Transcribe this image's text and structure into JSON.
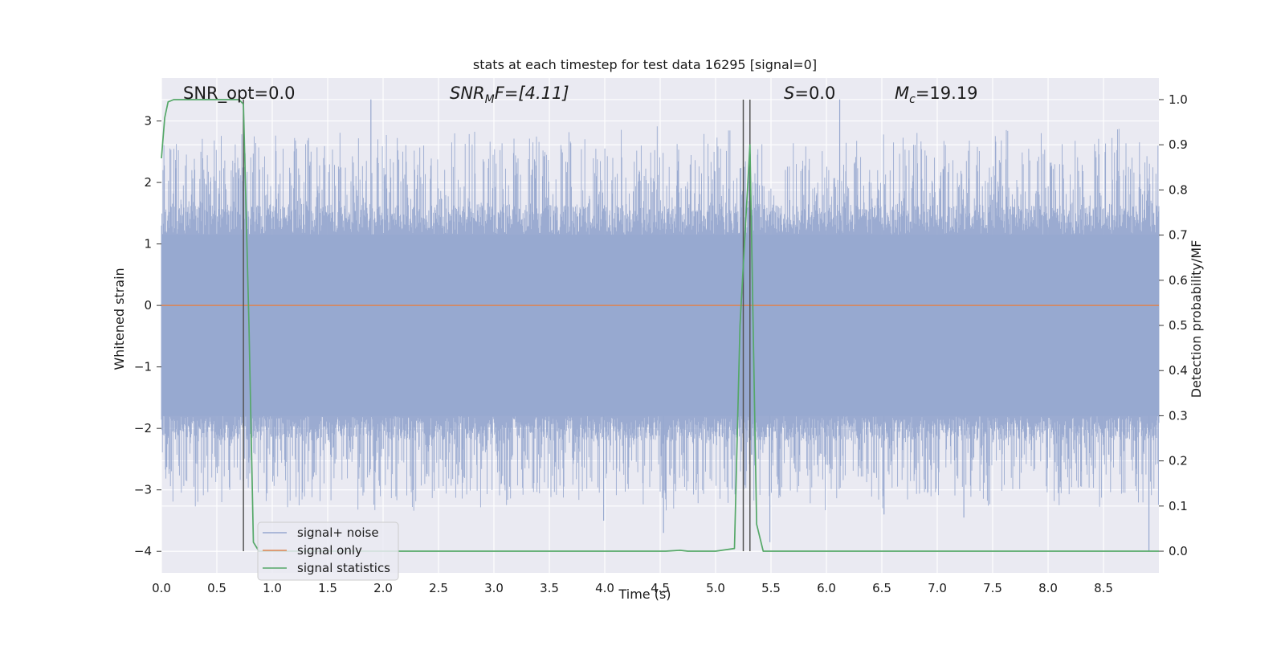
{
  "figure": {
    "title": "stats at each timestep for test data 16295 [signal=0]",
    "background": "#ffffff",
    "plot_background": "#eaeaf2",
    "grid_color": "#ffffff"
  },
  "annotations": {
    "snr_opt": "SNR_opt=0.0",
    "snr_mf_base": "SNR",
    "snr_mf_sub": "M",
    "snr_mf_rest": "F=[4.11]",
    "s_italic": "S",
    "s_rest": "=0.0",
    "mc_base": "M",
    "mc_sub": "c",
    "mc_rest": "=19.19"
  },
  "legend": {
    "placement": "lower-left",
    "items": [
      {
        "label": "signal+ noise",
        "color": "#97a8cf"
      },
      {
        "label": "signal only",
        "color": "#dd8452"
      },
      {
        "label": "signal statistics",
        "color": "#55a868"
      }
    ]
  },
  "chart_data": {
    "type": "line",
    "title": "stats at each timestep for test data 16295 [signal=0]",
    "xlabel": "Time (s)",
    "ylabel": "Whitened strain",
    "y2label": "Detection probability/MF",
    "xlim": [
      0.0,
      9.0
    ],
    "ylim": [
      -4.35,
      3.7
    ],
    "y2lim": [
      -0.048,
      1.048
    ],
    "grid": true,
    "x_ticks": [
      "0.0",
      "0.5",
      "1.0",
      "1.5",
      "2.0",
      "2.5",
      "3.0",
      "3.5",
      "4.0",
      "4.5",
      "5.0",
      "5.5",
      "6.0",
      "6.5",
      "7.0",
      "7.5",
      "8.0",
      "8.5"
    ],
    "y_ticks": [
      "−4",
      "−3",
      "−2",
      "−1",
      "0",
      "1",
      "2",
      "3"
    ],
    "y2_ticks": [
      "0.0",
      "0.1",
      "0.2",
      "0.3",
      "0.4",
      "0.5",
      "0.6",
      "0.7",
      "0.8",
      "0.9",
      "1.0"
    ],
    "series": [
      {
        "name": "signal+ noise",
        "axis": "left",
        "kind": "noise-band",
        "color": "#97a8cf",
        "x_range": [
          0.0,
          9.0
        ],
        "core_band": [
          -1.8,
          1.15
        ],
        "envelope": [
          -4.0,
          3.4
        ],
        "notable_spikes": [
          {
            "x": 1.89,
            "y": 3.35
          },
          {
            "x": 6.12,
            "y": 3.35
          },
          {
            "x": 8.91,
            "y": -4.0
          },
          {
            "x": 5.49,
            "y": -3.85
          },
          {
            "x": 4.53,
            "y": -3.7
          },
          {
            "x": 6.52,
            "y": -3.4
          },
          {
            "x": 7.24,
            "y": -3.45
          },
          {
            "x": 3.99,
            "y": -3.5
          }
        ]
      },
      {
        "name": "signal only",
        "axis": "left",
        "color": "#dd8452",
        "x": [
          0.0,
          9.0
        ],
        "y": [
          0.0,
          0.0
        ]
      },
      {
        "name": "signal statistics",
        "axis": "right",
        "color": "#55a868",
        "x": [
          0.0,
          0.03,
          0.06,
          0.11,
          0.2,
          0.4,
          0.6,
          0.7,
          0.74,
          0.79,
          0.83,
          0.88,
          0.95,
          1.0,
          2.0,
          3.0,
          4.0,
          4.55,
          4.68,
          4.75,
          5.0,
          5.17,
          5.22,
          5.31,
          5.37,
          5.43,
          5.5,
          6.0,
          7.0,
          8.0,
          9.0
        ],
        "y": [
          0.87,
          0.96,
          0.995,
          1.0,
          1.0,
          1.0,
          1.0,
          1.0,
          0.99,
          0.5,
          0.02,
          0.0,
          0.0,
          0.0,
          0.0,
          0.0,
          0.0,
          0.0,
          0.002,
          0.0,
          0.0,
          0.006,
          0.5,
          0.9,
          0.06,
          0.0,
          0.0,
          0.0,
          0.0,
          0.0,
          0.0
        ]
      }
    ],
    "vertical_markers": {
      "color": "#555555",
      "x": [
        0.74,
        5.25,
        5.31
      ],
      "y_top": 1.0,
      "y_bottom": 0.0
    }
  }
}
